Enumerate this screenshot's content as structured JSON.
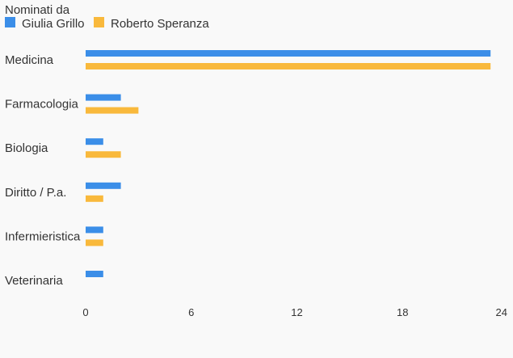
{
  "chart_data": {
    "type": "bar",
    "orientation": "horizontal",
    "legend_title": "Nominati da",
    "legend_position": "top-left",
    "categories": [
      "Medicina",
      "Farmacologia",
      "Biologia",
      "Diritto / P.a.",
      "Infermieristica",
      "Veterinaria"
    ],
    "series": [
      {
        "name": "Giulia Grillo",
        "color": "#3b8ee8",
        "values": [
          23,
          2,
          1,
          2,
          1,
          1
        ]
      },
      {
        "name": "Roberto Speranza",
        "color": "#f9b93c",
        "values": [
          23,
          3,
          2,
          1,
          1,
          0
        ]
      }
    ],
    "xlim": [
      0,
      24
    ],
    "xticks": [
      "0",
      "6",
      "12",
      "18",
      "24"
    ],
    "grid": false
  }
}
